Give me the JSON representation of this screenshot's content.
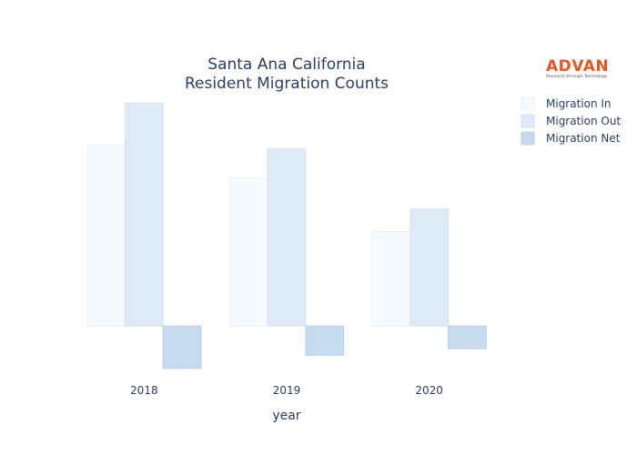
{
  "logo": {
    "name": "ADVAN",
    "tagline": "Research through Technology",
    "color": "#e8561f"
  },
  "chart_data": {
    "type": "bar",
    "title_lines": [
      "Santa Ana California",
      "Resident Migration Counts"
    ],
    "xlabel": "year",
    "ylabel": "",
    "categories": [
      "2018",
      "2019",
      "2020"
    ],
    "series": [
      {
        "name": "Migration In",
        "color": "#f7fafe",
        "stroke": "#eaf1fb",
        "values": [
          22200,
          18200,
          11600
        ]
      },
      {
        "name": "Migration Out",
        "color": "#dfeaf7",
        "stroke": "#d4e2f4",
        "values": [
          27400,
          21800,
          14400
        ]
      },
      {
        "name": "Migration Net",
        "color": "#c7dbf0",
        "stroke": "#b9d0ea",
        "values": [
          -5200,
          -3600,
          -2800
        ]
      }
    ],
    "ylim": [
      -5800,
      28000
    ],
    "grid": false,
    "show_y_ticks": false,
    "legend": "top-right"
  }
}
